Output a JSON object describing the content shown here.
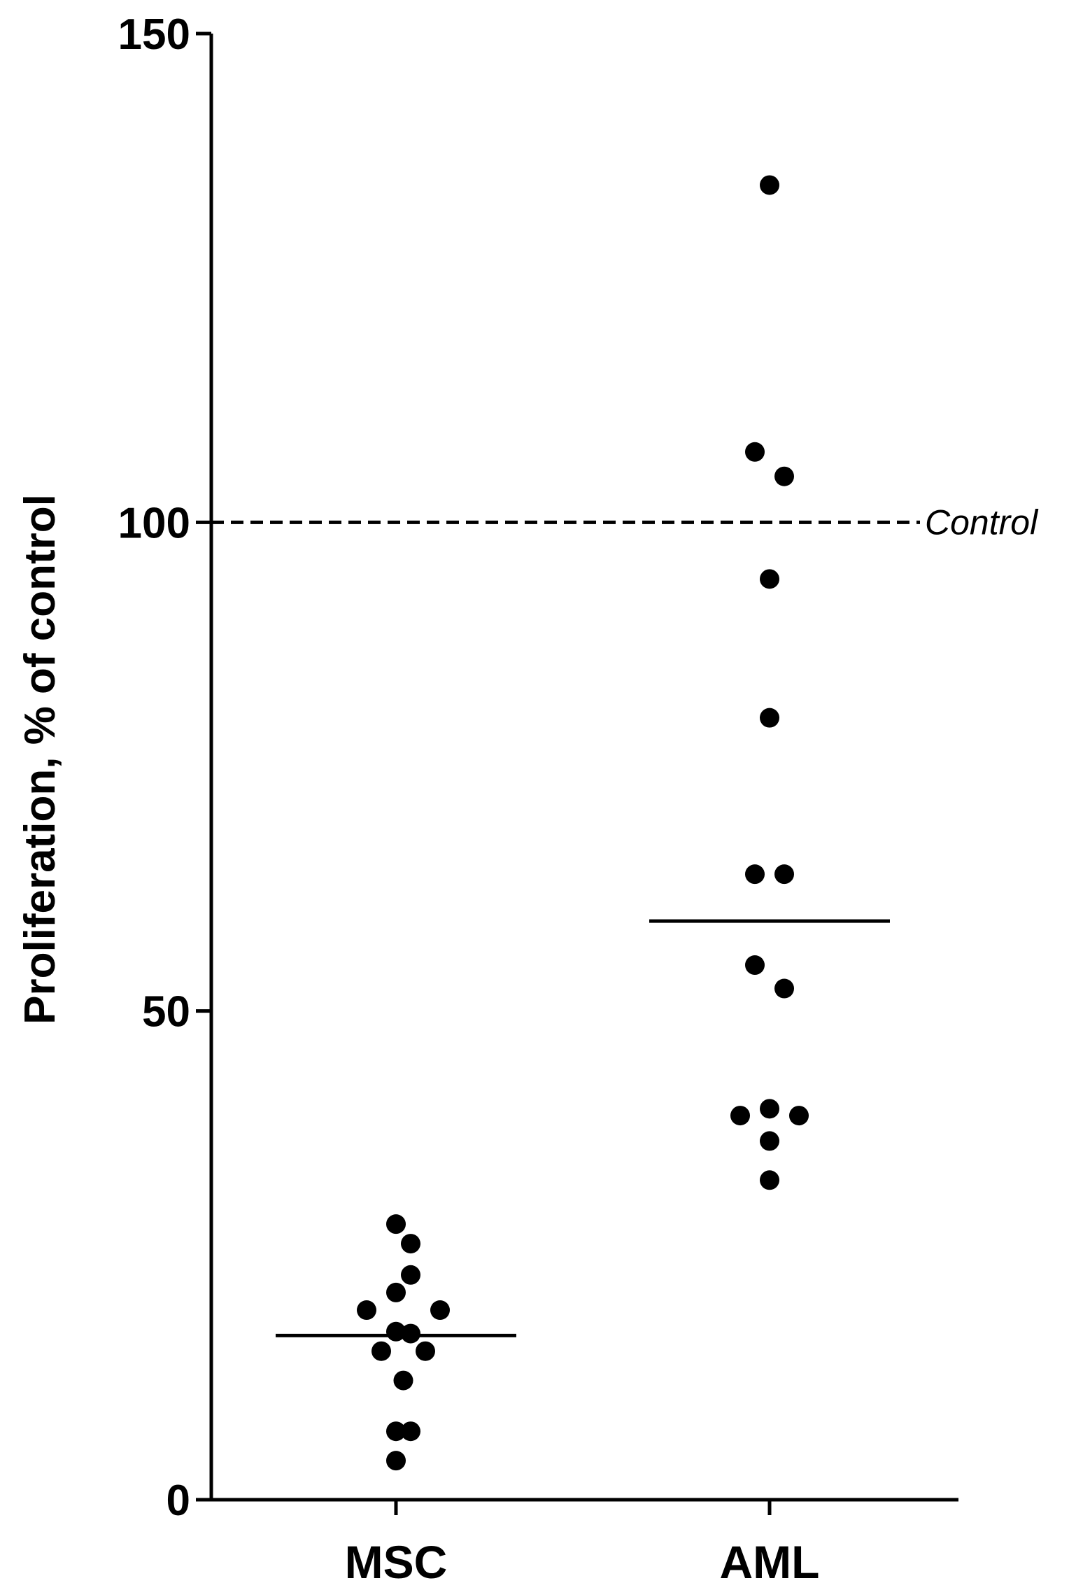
{
  "chart_data": {
    "type": "scatter",
    "title": "",
    "xlabel": "",
    "ylabel": "Proliferation, % of control",
    "ylim": [
      0,
      150
    ],
    "yticks": [
      0,
      50,
      100,
      150
    ],
    "grid": false,
    "categories": [
      "MSC",
      "AML"
    ],
    "reference_line": {
      "value": 100,
      "label": "Control",
      "style": "dashed"
    },
    "series": [
      {
        "category": "MSC",
        "points": [
          {
            "value": 28.2,
            "offset": 0
          },
          {
            "value": 26.2,
            "offset": 1
          },
          {
            "value": 23.0,
            "offset": 1
          },
          {
            "value": 21.2,
            "offset": 0
          },
          {
            "value": 19.4,
            "offset": -2
          },
          {
            "value": 19.4,
            "offset": 3
          },
          {
            "value": 17.2,
            "offset": 0
          },
          {
            "value": 17.0,
            "offset": 1
          },
          {
            "value": 15.2,
            "offset": -1
          },
          {
            "value": 15.2,
            "offset": 2
          },
          {
            "value": 12.2,
            "offset": 0.5
          },
          {
            "value": 7.0,
            "offset": 0
          },
          {
            "value": 7.0,
            "offset": 1
          },
          {
            "value": 4.0,
            "offset": 0
          }
        ],
        "median": 16.8
      },
      {
        "category": "AML",
        "points": [
          {
            "value": 134.5,
            "offset": 0
          },
          {
            "value": 107.2,
            "offset": -1
          },
          {
            "value": 104.7,
            "offset": 1
          },
          {
            "value": 94.2,
            "offset": 0
          },
          {
            "value": 80.0,
            "offset": 0
          },
          {
            "value": 64.0,
            "offset": -1
          },
          {
            "value": 64.0,
            "offset": 1
          },
          {
            "value": 54.7,
            "offset": -1
          },
          {
            "value": 52.3,
            "offset": 1
          },
          {
            "value": 40.0,
            "offset": 0
          },
          {
            "value": 39.3,
            "offset": 2
          },
          {
            "value": 39.3,
            "offset": -2
          },
          {
            "value": 36.7,
            "offset": 0
          },
          {
            "value": 32.7,
            "offset": 0
          }
        ],
        "median": 59.2
      }
    ]
  }
}
